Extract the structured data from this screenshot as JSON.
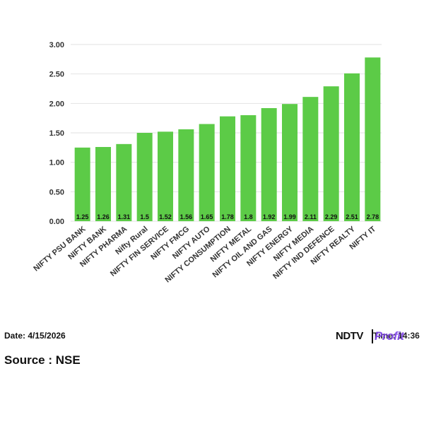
{
  "chart_data": {
    "type": "bar",
    "categories": [
      "NIFTY PSU BANK",
      "NIFTY BANK",
      "NIFTY PHARMA",
      "Nifty Rural",
      "NIFTY FIN SERVICE",
      "NIFTY FMCG",
      "NIFTY AUTO",
      "NIFTY CONSUMPTION",
      "NIFTY METAL",
      "NIFTY OIL AND GAS",
      "NIFTY ENERGY",
      "NIFTY MEDIA",
      "NIFTY IND DEFENCE",
      "NIFTY REALTY",
      "NIFTY IT"
    ],
    "values": [
      1.25,
      1.26,
      1.31,
      1.5,
      1.52,
      1.56,
      1.65,
      1.78,
      1.8,
      1.92,
      1.99,
      2.11,
      2.29,
      2.51,
      2.78
    ],
    "data_labels": [
      "1.25",
      "1.26",
      "1.31",
      "1.5",
      "1.52",
      "1.56",
      "1.65",
      "1.78",
      "1.8",
      "1.92",
      "1.99",
      "2.11",
      "2.29",
      "2.51",
      "2.78"
    ],
    "y_ticks": [
      "0.00",
      "0.50",
      "1.00",
      "1.50",
      "2.00",
      "2.50",
      "3.00"
    ],
    "ylim": [
      0,
      3
    ],
    "bar_color": "#5ccb47",
    "grid": true,
    "title": "",
    "xlabel": "",
    "ylabel": ""
  },
  "footer": {
    "date": "Date: 4/15/2026",
    "time": "Time: 14:36",
    "source": "Source : NSE"
  },
  "logo": {
    "ndtv": "NDTV",
    "profit": "Profit",
    "profit_color": "#7b3fe4"
  }
}
